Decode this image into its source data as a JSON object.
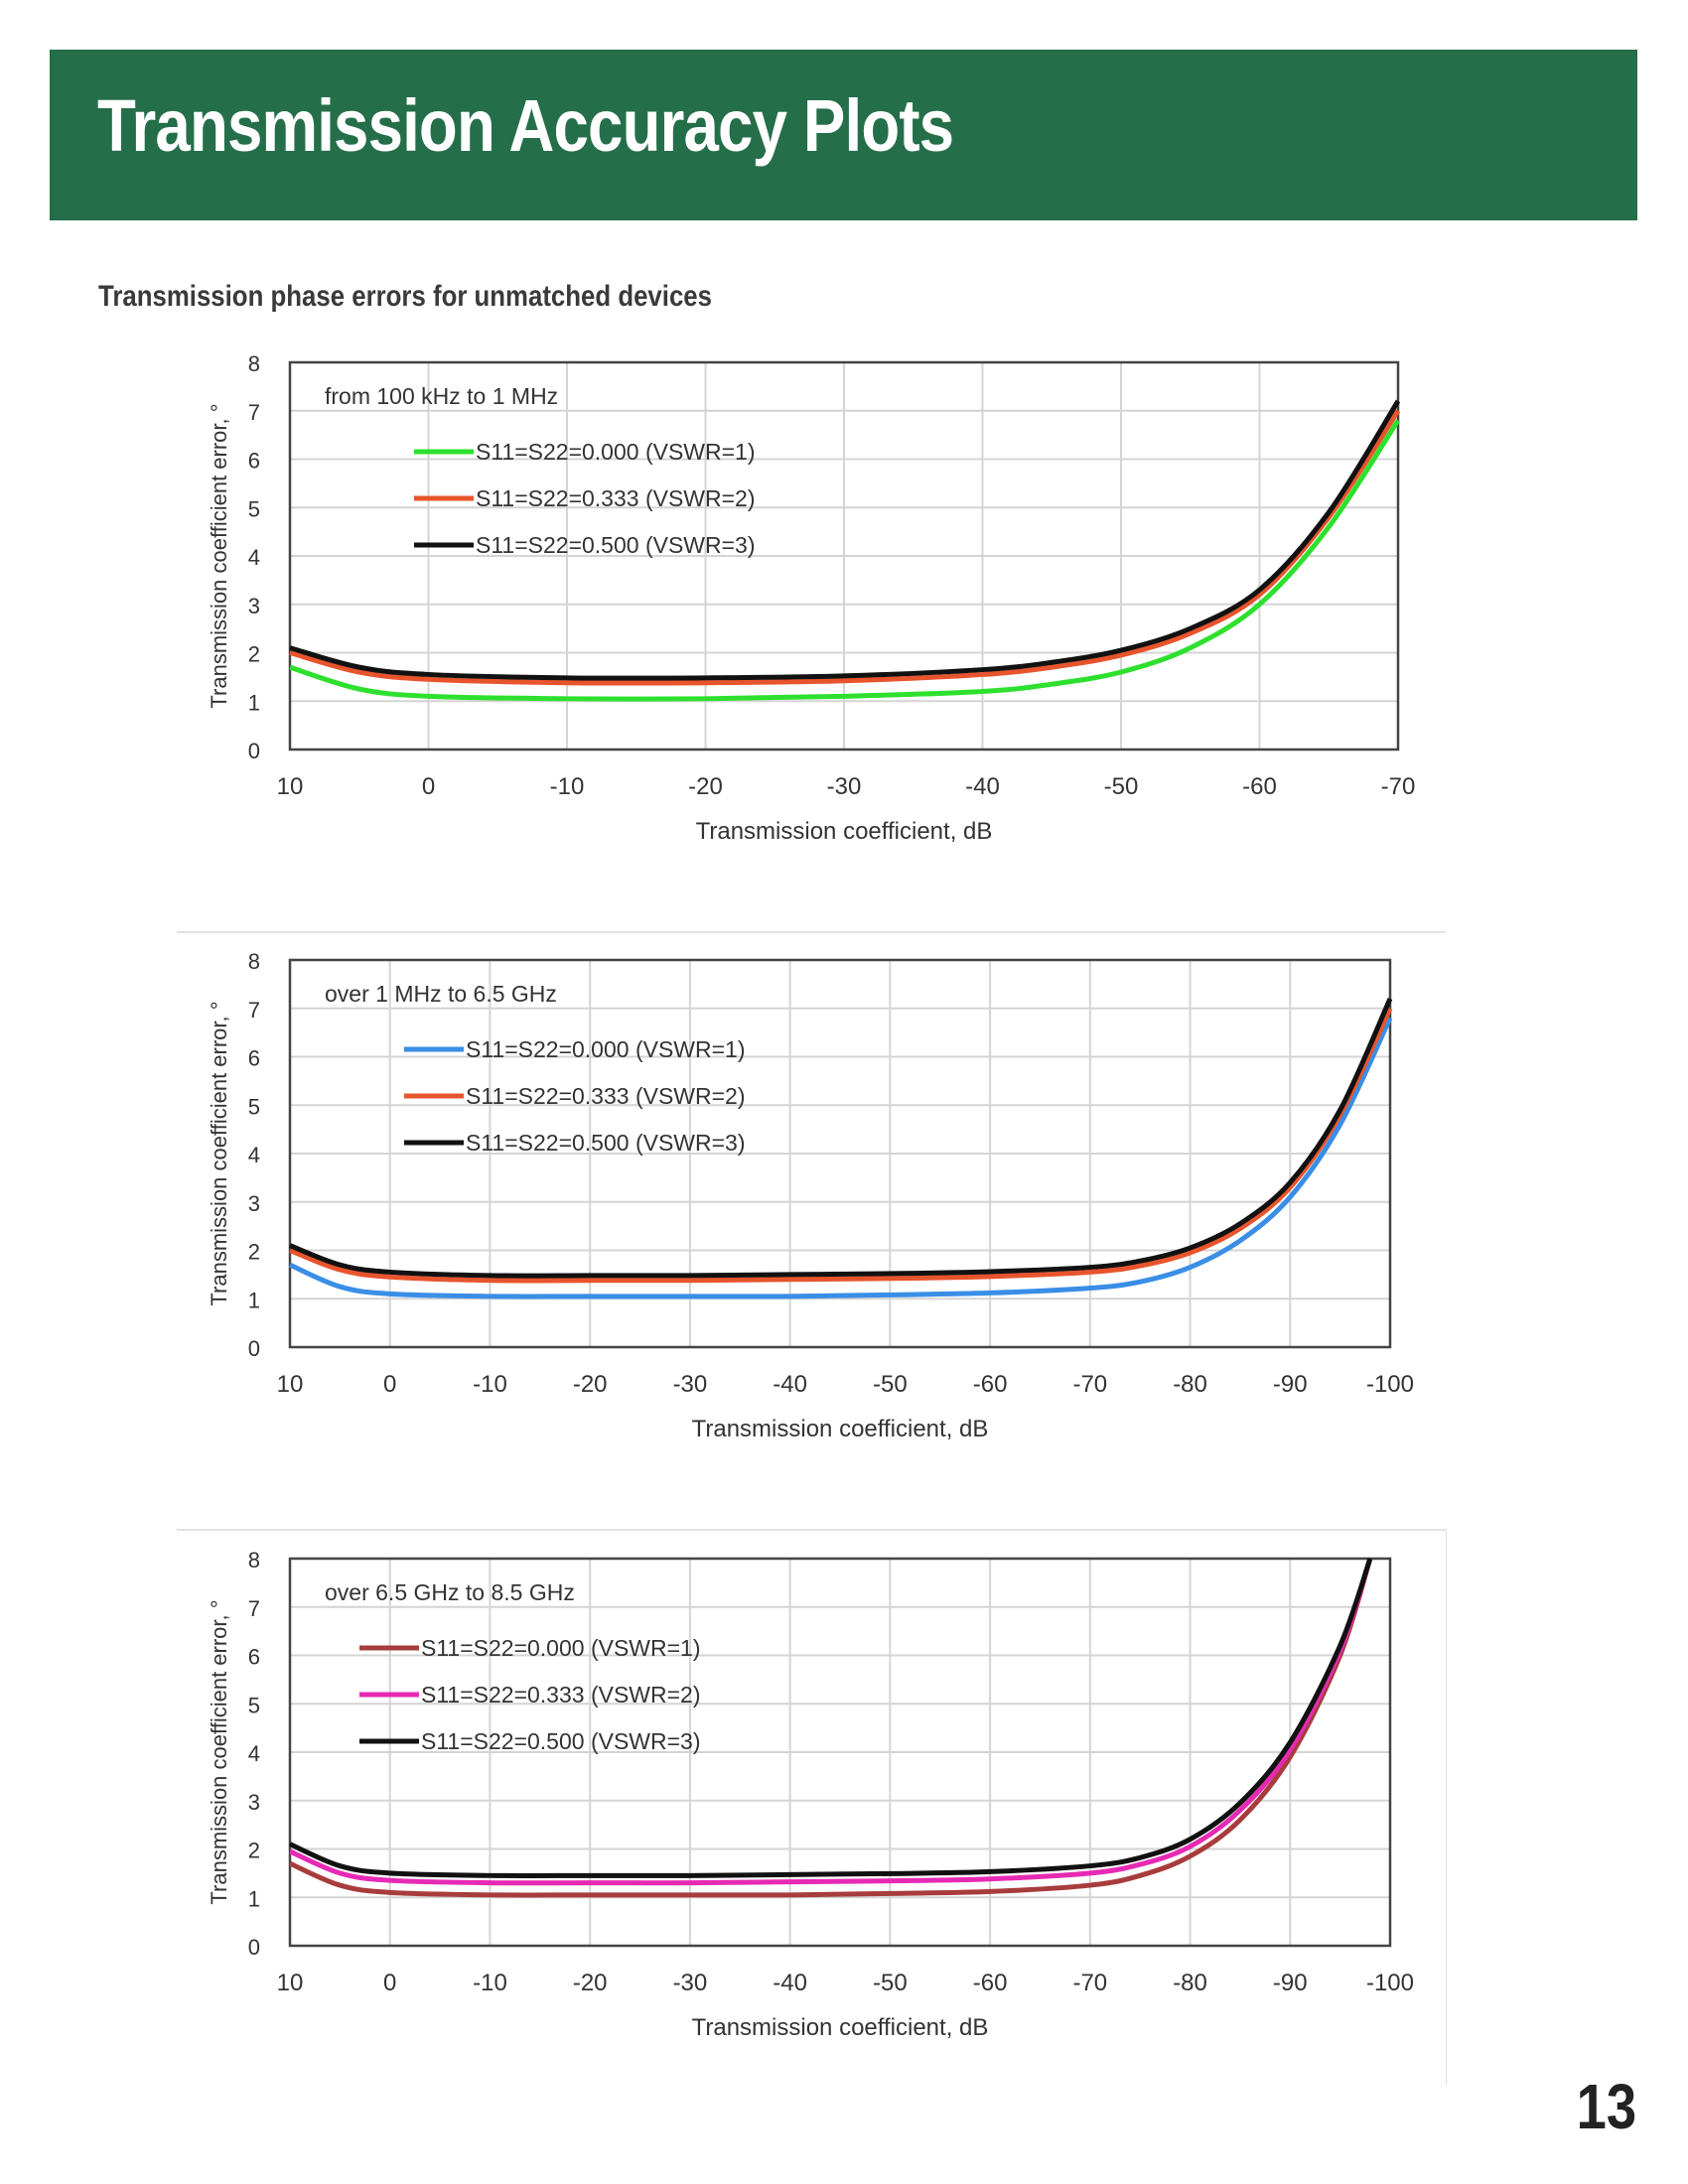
{
  "page": {
    "title": "Transmission Accuracy Plots",
    "subtitle": "Transmission phase errors for unmatched devices",
    "page_number": "13",
    "header_color": "#256e4a"
  },
  "chart_data": [
    {
      "type": "line",
      "annotation": "from 100 kHz to 1 MHz",
      "xlabel": "Transmission coefficient, dB",
      "ylabel": "Transmission coefficient error, °",
      "xlim": [
        10,
        -70
      ],
      "ylim": [
        0,
        8
      ],
      "xticks": [
        10,
        0,
        -10,
        -20,
        -30,
        -40,
        -50,
        -60,
        -70
      ],
      "yticks": [
        0,
        1,
        2,
        3,
        4,
        5,
        6,
        7,
        8
      ],
      "grid": true,
      "legend_position": "top-left",
      "series": [
        {
          "name": "S11=S22=0.000 (VSWR=1)",
          "color": "#2ee02e",
          "x": [
            10,
            5,
            0,
            -10,
            -20,
            -30,
            -40,
            -45,
            -50,
            -55,
            -60,
            -65,
            -70
          ],
          "y": [
            1.7,
            1.25,
            1.1,
            1.05,
            1.05,
            1.1,
            1.2,
            1.35,
            1.6,
            2.1,
            3.0,
            4.6,
            6.8
          ]
        },
        {
          "name": "S11=S22=0.333 (VSWR=2)",
          "color": "#e8542c",
          "x": [
            10,
            5,
            0,
            -10,
            -20,
            -30,
            -40,
            -45,
            -50,
            -55,
            -60,
            -65,
            -70
          ],
          "y": [
            2.0,
            1.6,
            1.45,
            1.38,
            1.38,
            1.42,
            1.55,
            1.7,
            1.95,
            2.4,
            3.2,
            4.8,
            7.0
          ]
        },
        {
          "name": "S11=S22=0.500 (VSWR=3)",
          "color": "#111111",
          "x": [
            10,
            5,
            0,
            -10,
            -20,
            -30,
            -40,
            -45,
            -50,
            -55,
            -60,
            -65,
            -70
          ],
          "y": [
            2.1,
            1.7,
            1.55,
            1.48,
            1.48,
            1.52,
            1.65,
            1.8,
            2.05,
            2.5,
            3.3,
            4.9,
            7.2
          ]
        }
      ]
    },
    {
      "type": "line",
      "annotation": "over 1 MHz to 6.5 GHz",
      "xlabel": "Transmission coefficient, dB",
      "ylabel": "Transmission coefficient error, °",
      "xlim": [
        10,
        -100
      ],
      "ylim": [
        0,
        8
      ],
      "xticks": [
        10,
        0,
        -10,
        -20,
        -30,
        -40,
        -50,
        -60,
        -70,
        -80,
        -90,
        -100
      ],
      "yticks": [
        0,
        1,
        2,
        3,
        4,
        5,
        6,
        7,
        8
      ],
      "grid": true,
      "legend_position": "top-left",
      "series": [
        {
          "name": "S11=S22=0.000 (VSWR=1)",
          "color": "#3a8ee6",
          "x": [
            10,
            5,
            0,
            -10,
            -20,
            -30,
            -40,
            -50,
            -60,
            -70,
            -75,
            -80,
            -85,
            -90,
            -95,
            -100
          ],
          "y": [
            1.7,
            1.25,
            1.1,
            1.05,
            1.05,
            1.05,
            1.05,
            1.08,
            1.12,
            1.22,
            1.35,
            1.65,
            2.2,
            3.1,
            4.6,
            6.8
          ]
        },
        {
          "name": "S11=S22=0.333 (VSWR=2)",
          "color": "#e8542c",
          "x": [
            10,
            5,
            0,
            -10,
            -20,
            -30,
            -40,
            -50,
            -60,
            -70,
            -75,
            -80,
            -85,
            -90,
            -95,
            -100
          ],
          "y": [
            2.0,
            1.6,
            1.45,
            1.38,
            1.38,
            1.38,
            1.4,
            1.42,
            1.46,
            1.55,
            1.68,
            1.95,
            2.45,
            3.3,
            4.8,
            7.0
          ]
        },
        {
          "name": "S11=S22=0.500 (VSWR=3)",
          "color": "#111111",
          "x": [
            10,
            5,
            0,
            -10,
            -20,
            -30,
            -40,
            -50,
            -60,
            -70,
            -75,
            -80,
            -85,
            -90,
            -95,
            -100
          ],
          "y": [
            2.1,
            1.7,
            1.55,
            1.48,
            1.48,
            1.48,
            1.5,
            1.52,
            1.56,
            1.65,
            1.78,
            2.05,
            2.55,
            3.4,
            4.9,
            7.2
          ]
        }
      ]
    },
    {
      "type": "line",
      "annotation": "over 6.5 GHz to 8.5 GHz",
      "xlabel": "Transmission coefficient, dB",
      "ylabel": "Transmission coefficient error, °",
      "xlim": [
        10,
        -100
      ],
      "ylim": [
        0,
        8
      ],
      "xticks": [
        10,
        0,
        -10,
        -20,
        -30,
        -40,
        -50,
        -60,
        -70,
        -80,
        -90,
        -100
      ],
      "yticks": [
        0,
        1,
        2,
        3,
        4,
        5,
        6,
        7,
        8
      ],
      "grid": true,
      "legend_position": "top-left",
      "series": [
        {
          "name": "S11=S22=0.000 (VSWR=1)",
          "color": "#a83c3c",
          "x": [
            10,
            5,
            0,
            -10,
            -20,
            -30,
            -40,
            -50,
            -60,
            -70,
            -75,
            -80,
            -85,
            -90,
            -95,
            -98
          ],
          "y": [
            1.7,
            1.25,
            1.1,
            1.05,
            1.05,
            1.05,
            1.05,
            1.08,
            1.12,
            1.25,
            1.45,
            1.85,
            2.6,
            3.9,
            6.0,
            8.0
          ]
        },
        {
          "name": "S11=S22=0.333 (VSWR=2)",
          "color": "#e62ab4",
          "x": [
            10,
            5,
            0,
            -10,
            -20,
            -30,
            -40,
            -50,
            -60,
            -70,
            -75,
            -80,
            -85,
            -90,
            -95,
            -98
          ],
          "y": [
            1.95,
            1.5,
            1.35,
            1.3,
            1.3,
            1.3,
            1.32,
            1.34,
            1.38,
            1.5,
            1.68,
            2.05,
            2.8,
            4.05,
            6.1,
            8.0
          ]
        },
        {
          "name": "S11=S22=0.500 (VSWR=3)",
          "color": "#111111",
          "x": [
            10,
            5,
            0,
            -10,
            -20,
            -30,
            -40,
            -50,
            -60,
            -70,
            -75,
            -80,
            -85,
            -90,
            -95,
            -98
          ],
          "y": [
            2.1,
            1.65,
            1.5,
            1.45,
            1.45,
            1.45,
            1.47,
            1.49,
            1.53,
            1.65,
            1.82,
            2.2,
            2.95,
            4.2,
            6.2,
            8.0
          ]
        }
      ]
    }
  ]
}
